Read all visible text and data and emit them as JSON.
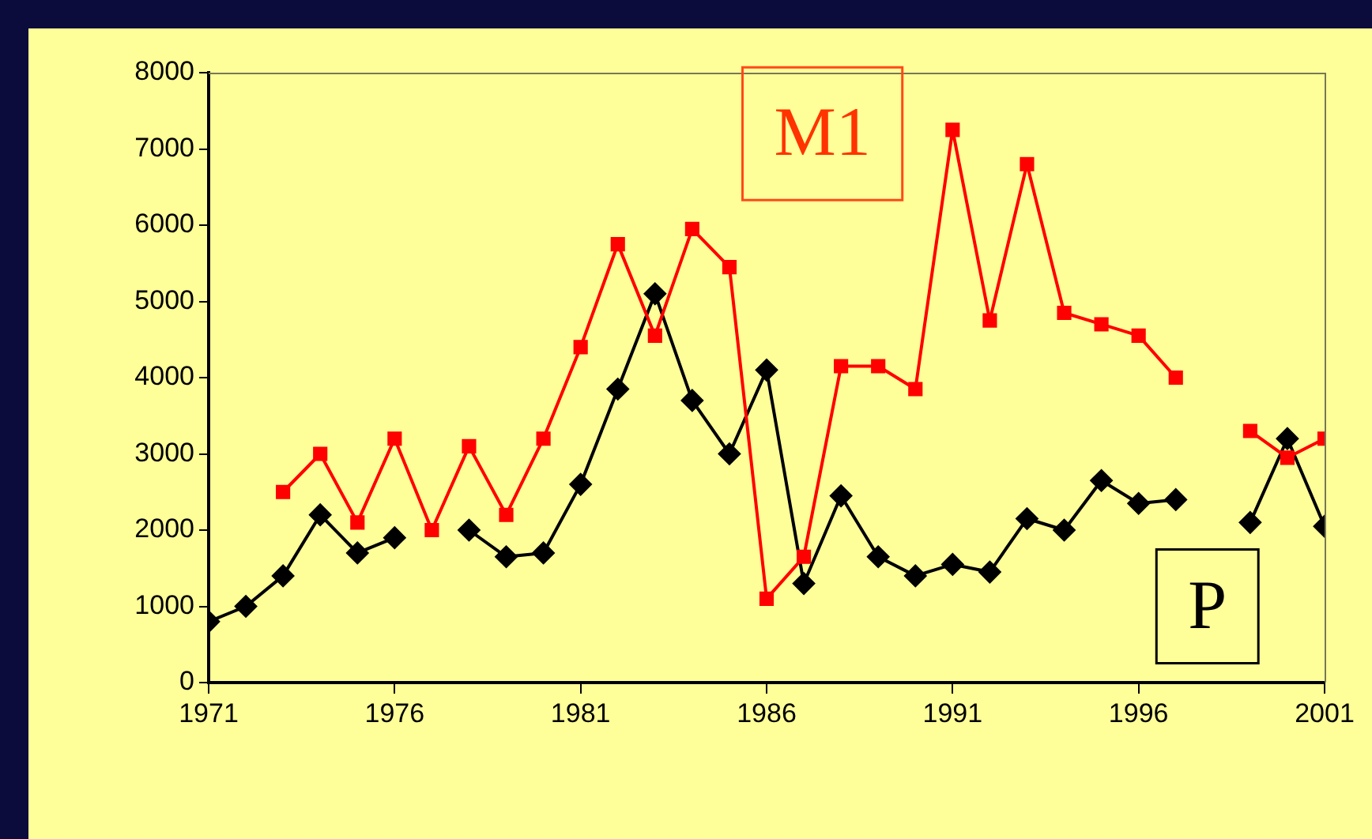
{
  "chart_data": {
    "type": "line",
    "x": [
      1971,
      1972,
      1973,
      1974,
      1975,
      1976,
      1977,
      1978,
      1979,
      1980,
      1981,
      1982,
      1983,
      1984,
      1985,
      1986,
      1987,
      1988,
      1989,
      1990,
      1991,
      1992,
      1993,
      1994,
      1995,
      1996,
      1997,
      1998,
      1999,
      2000,
      2001
    ],
    "series": [
      {
        "name": "M1",
        "color": "#ff0000",
        "marker": "square",
        "values": [
          null,
          null,
          2500,
          3000,
          2100,
          3200,
          2000,
          3100,
          2200,
          3200,
          4400,
          5750,
          4550,
          5950,
          5450,
          1100,
          1650,
          4150,
          4150,
          3850,
          7250,
          4750,
          6800,
          4850,
          4700,
          4550,
          4000,
          null,
          3300,
          2950,
          3200
        ]
      },
      {
        "name": "P",
        "color": "#000000",
        "marker": "diamond",
        "values": [
          800,
          1000,
          1400,
          2200,
          1700,
          1900,
          null,
          2000,
          1650,
          1700,
          2600,
          3850,
          5100,
          3700,
          3000,
          4100,
          1300,
          2450,
          1650,
          1400,
          1550,
          1450,
          2150,
          2000,
          2650,
          2350,
          2400,
          null,
          2100,
          3200,
          2050
        ]
      }
    ],
    "xlim": [
      1971,
      2001
    ],
    "xticks": [
      1971,
      1976,
      1981,
      1986,
      1991,
      1996,
      2001
    ],
    "ylim": [
      0,
      8000
    ],
    "yticks": [
      0,
      1000,
      2000,
      3000,
      4000,
      5000,
      6000,
      7000,
      8000
    ],
    "grid": false,
    "legend": false,
    "line_style": "solid"
  }
}
